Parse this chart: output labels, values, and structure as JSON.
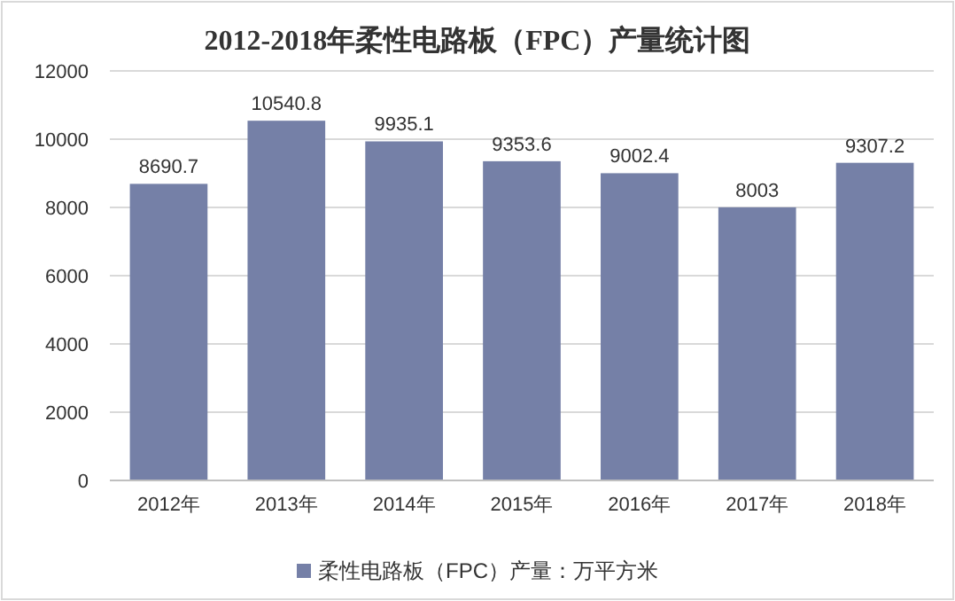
{
  "chart_data": {
    "type": "bar",
    "title": "2012-2018年柔性电路板（FPC）产量统计图",
    "categories": [
      "2012年",
      "2013年",
      "2014年",
      "2015年",
      "2016年",
      "2017年",
      "2018年"
    ],
    "series": [
      {
        "name": "柔性电路板（FPC）产量：万平方米",
        "color": "#7580a7",
        "values": [
          8690.7,
          10540.8,
          9935.1,
          9353.6,
          9002.4,
          8003,
          9307.2
        ]
      }
    ],
    "ylim": [
      0,
      12000
    ],
    "yticks": [
      0,
      2000,
      4000,
      6000,
      8000,
      10000,
      12000
    ],
    "grid": "y",
    "legend": "bottom",
    "data_labels": true
  }
}
